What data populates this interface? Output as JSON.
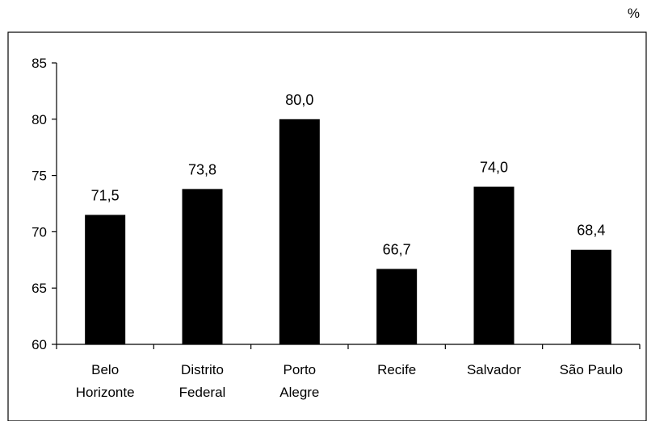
{
  "chart_data": {
    "type": "bar",
    "unit": "%",
    "categories": [
      [
        "Belo",
        "Horizonte"
      ],
      [
        "Distrito",
        "Federal"
      ],
      [
        "Porto",
        "Alegre"
      ],
      [
        "Recife"
      ],
      [
        "Salvador"
      ],
      [
        "São Paulo"
      ]
    ],
    "values": [
      71.5,
      73.8,
      80.0,
      66.7,
      74.0,
      68.4
    ],
    "data_labels": [
      "71,5",
      "73,8",
      "80,0",
      "66,7",
      "74,0",
      "68,4"
    ],
    "ylim": [
      60,
      85
    ],
    "yticks": [
      60,
      65,
      70,
      75,
      80,
      85
    ],
    "ytick_labels": [
      "60",
      "65",
      "70",
      "75",
      "80",
      "85"
    ],
    "bar_color": "#000000",
    "grid": false,
    "legend": false
  }
}
